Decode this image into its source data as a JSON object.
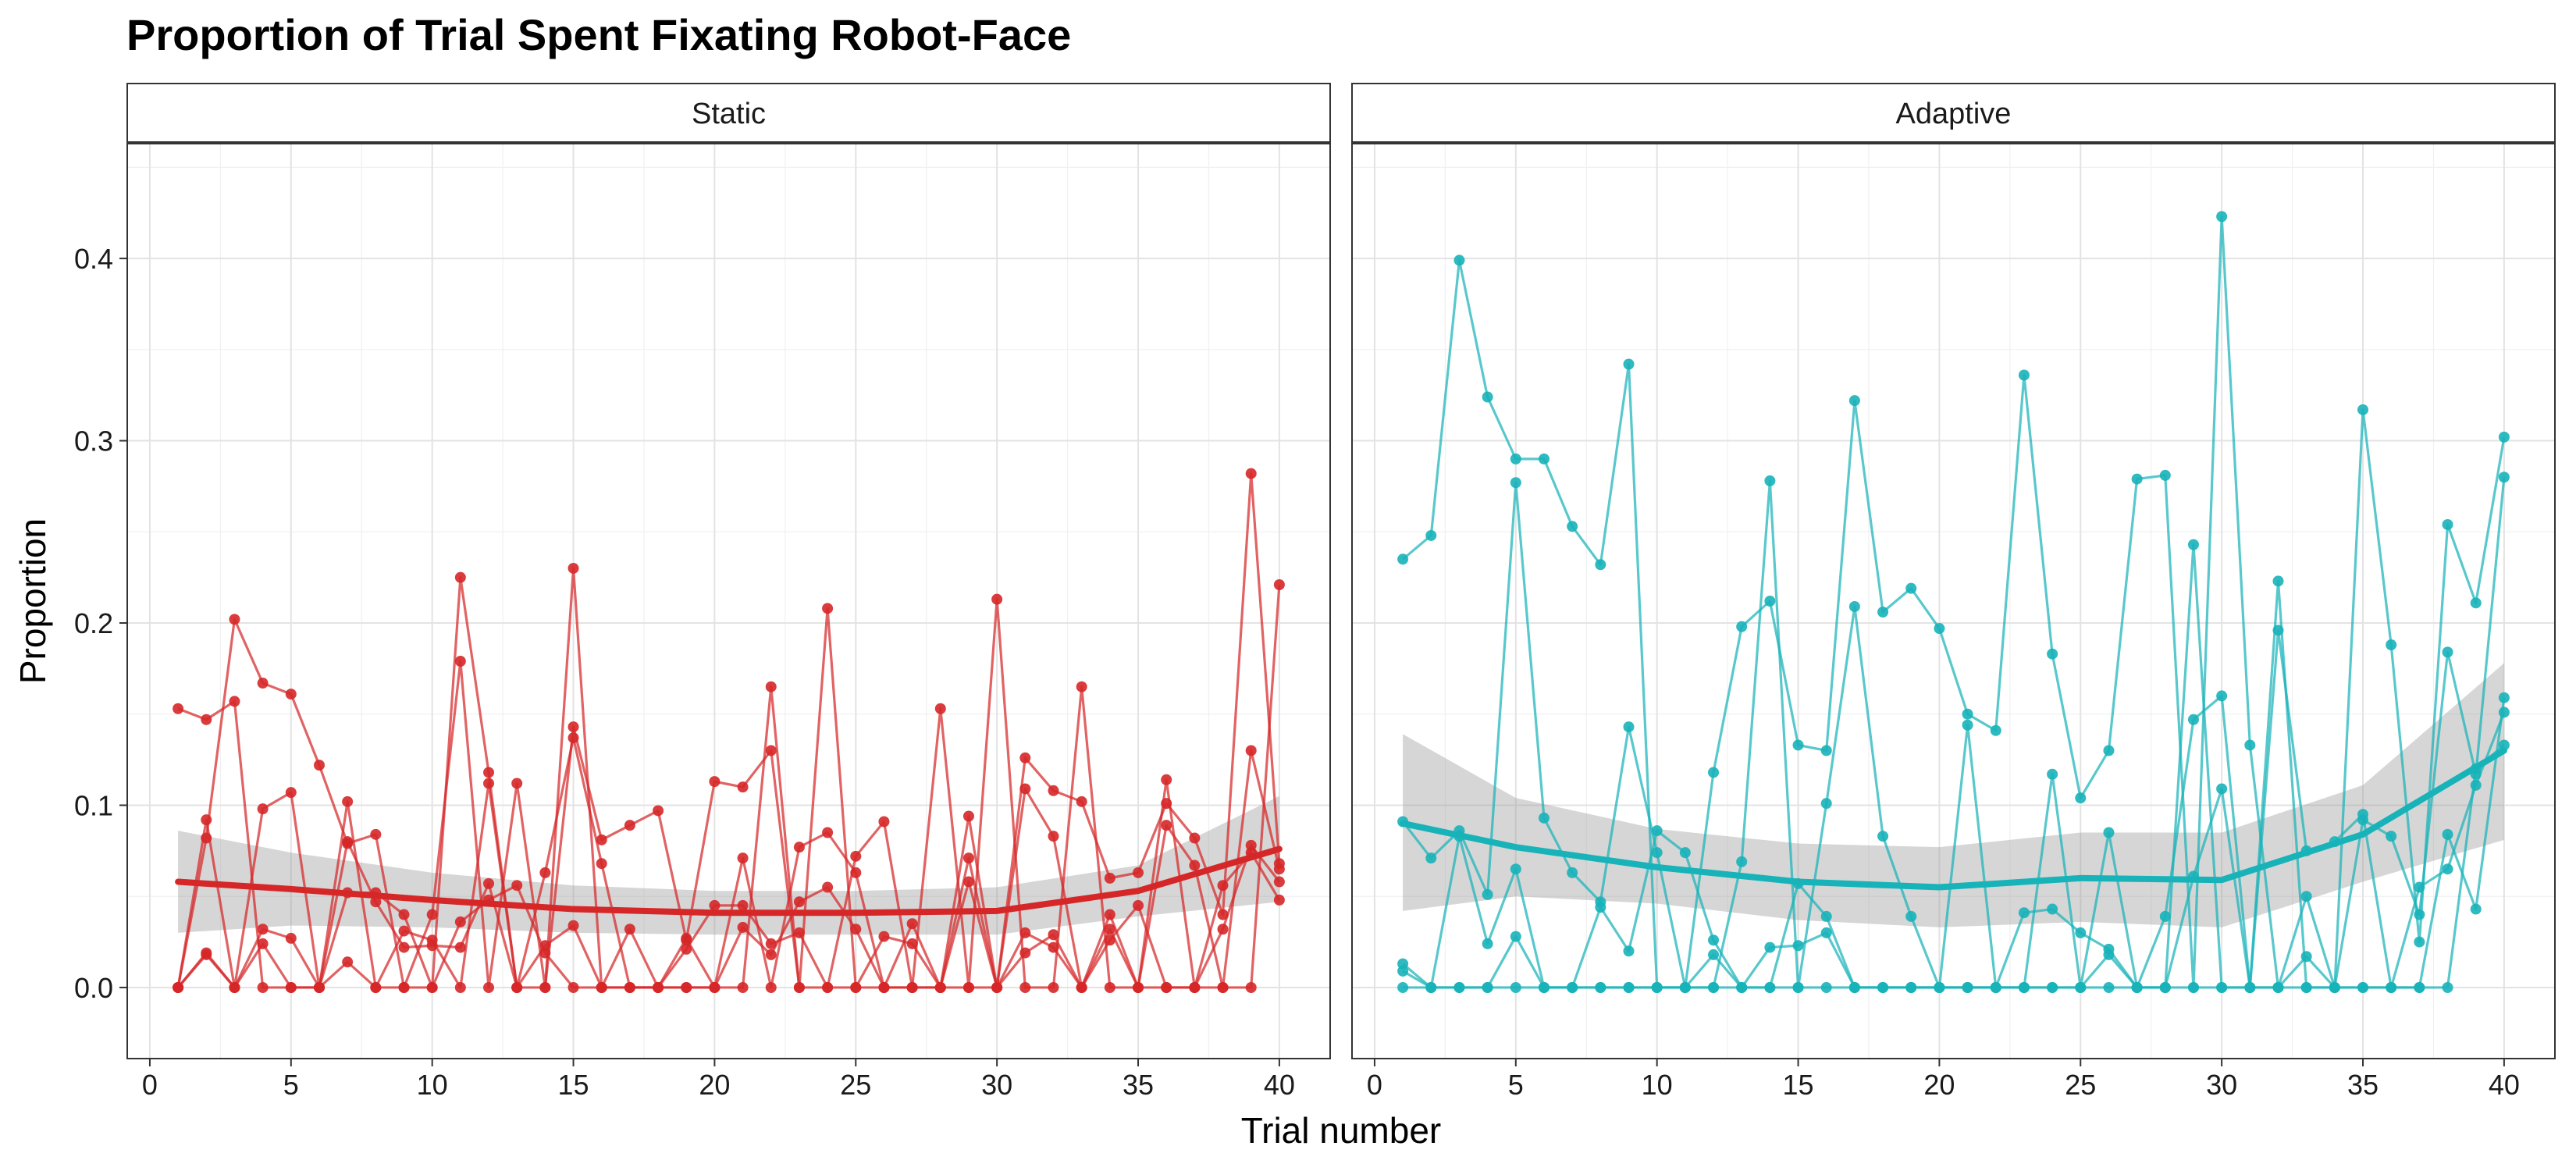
{
  "title": "Proportion of Trial Spent Fixating Robot-Face",
  "xlabel": "Trial number",
  "ylabel": "Proportion",
  "chart_data": {
    "type": "line",
    "title": "Proportion of Trial Spent Fixating Robot-Face",
    "xlabel": "Trial number",
    "ylabel": "Proportion",
    "xlim": [
      -0.8,
      41.8
    ],
    "ylim": [
      -0.039,
      0.463
    ],
    "x_ticks": [
      0,
      5,
      10,
      15,
      20,
      25,
      30,
      35,
      40
    ],
    "y_ticks": [
      0.0,
      0.1,
      0.2,
      0.3,
      0.4
    ],
    "x_tick_labels": [
      "0",
      "5",
      "10",
      "15",
      "20",
      "25",
      "30",
      "35",
      "40"
    ],
    "y_tick_labels": [
      "0.0",
      "0.1",
      "0.2",
      "0.3",
      "0.4"
    ],
    "grid": true,
    "smooth_band": "95% CI (gray)",
    "panels": [
      {
        "name": "Static",
        "color": "#d62728",
        "series": [
          {
            "x": [
              1,
              2,
              3,
              4,
              5,
              6,
              7,
              8,
              9,
              10,
              11,
              12,
              13,
              14,
              15,
              16,
              17,
              18,
              19,
              20,
              21,
              22,
              23,
              24,
              25,
              26,
              27,
              28,
              29,
              30,
              31,
              32,
              33,
              34,
              35,
              36,
              37,
              38,
              39,
              40
            ],
            "y": [
              0.153,
              0.147,
              0.157,
              0.0,
              0.0,
              0.0,
              0.014,
              0.0,
              0.0,
              0.04,
              0.179,
              0.0,
              0.112,
              0.0,
              0.23,
              0.0,
              0.0,
              0.0,
              0.0,
              0.0,
              0.0,
              0.165,
              0.0,
              0.208,
              0.0,
              0.0,
              0.0,
              0.153,
              0.0,
              0.213,
              0.0,
              0.0,
              0.165,
              0.0,
              0.0,
              0.114,
              0.0,
              0.0,
              0.0,
              0.221
            ]
          },
          {
            "x": [
              1,
              2,
              3,
              4,
              5,
              6,
              7,
              8,
              9,
              10,
              11,
              12,
              13,
              14,
              15,
              16,
              17,
              18,
              19,
              20,
              21,
              22,
              23,
              24,
              25,
              26,
              27,
              28,
              29,
              30,
              31,
              32,
              33,
              34,
              35,
              36,
              37,
              38,
              39,
              40
            ],
            "y": [
              0.0,
              0.082,
              0.202,
              0.167,
              0.161,
              0.122,
              0.079,
              0.084,
              0.0,
              0.0,
              0.225,
              0.118,
              0.0,
              0.0,
              0.143,
              0.081,
              0.089,
              0.097,
              0.026,
              0.113,
              0.11,
              0.13,
              0.0,
              0.0,
              0.072,
              0.091,
              0.0,
              0.0,
              0.094,
              0.0,
              0.126,
              0.108,
              0.102,
              0.06,
              0.063,
              0.101,
              0.082,
              0.04,
              0.282,
              0.068
            ]
          },
          {
            "x": [
              1,
              2,
              3,
              4,
              5,
              6,
              7,
              8,
              9,
              10,
              11,
              12,
              13,
              14,
              15,
              16,
              17,
              18,
              19,
              20,
              21,
              22,
              23,
              24,
              25,
              26,
              27,
              28,
              29,
              30,
              31,
              32,
              33,
              34,
              35,
              36,
              37,
              38,
              39,
              40
            ],
            "y": [
              0.0,
              0.092,
              0.0,
              0.098,
              0.107,
              0.0,
              0.102,
              0.0,
              0.031,
              0.026,
              0.0,
              0.112,
              0.0,
              0.063,
              0.137,
              0.068,
              0.0,
              0.0,
              0.0,
              0.0,
              0.071,
              0.0,
              0.077,
              0.085,
              0.063,
              0.0,
              0.0,
              0.0,
              0.071,
              0.0,
              0.109,
              0.083,
              0.0,
              0.032,
              0.0,
              0.089,
              0.067,
              0.0,
              0.13,
              0.065
            ]
          },
          {
            "x": [
              1,
              2,
              3,
              4,
              5,
              6,
              7,
              8,
              9,
              10,
              11,
              12,
              13,
              14,
              15,
              16,
              17,
              18,
              19,
              20,
              21,
              22,
              23,
              24,
              25,
              26,
              27,
              28,
              29,
              30,
              31,
              32,
              33,
              34,
              35,
              36,
              37,
              38,
              39,
              40
            ],
            "y": [
              0.0,
              0.018,
              0.0,
              0.032,
              0.027,
              0.0,
              0.052,
              0.052,
              0.04,
              0.0,
              0.036,
              0.048,
              0.056,
              0.019,
              0.0,
              0.0,
              0.032,
              0.0,
              0.021,
              0.045,
              0.045,
              0.024,
              0.03,
              0.0,
              0.0,
              0.028,
              0.024,
              0.0,
              0.0,
              0.0,
              0.03,
              0.022,
              0.0,
              0.026,
              0.045,
              0.0,
              0.0,
              0.032,
              0.078,
              0.058
            ]
          },
          {
            "x": [
              1,
              2,
              3,
              4,
              5,
              6,
              7,
              8,
              9,
              10,
              11,
              12,
              13,
              14,
              15,
              16,
              17,
              18,
              19,
              20,
              21,
              22,
              23,
              24,
              25,
              26,
              27,
              28,
              29,
              30,
              31,
              32,
              33,
              34,
              35,
              36,
              37,
              38,
              39,
              40
            ],
            "y": [
              0.0,
              0.019,
              0.0,
              0.024,
              0.0,
              0.0,
              0.08,
              0.047,
              0.022,
              0.023,
              0.022,
              0.057,
              0.0,
              0.023,
              0.034,
              0.0,
              0.0,
              0.0,
              0.027,
              0.0,
              0.033,
              0.018,
              0.047,
              0.055,
              0.032,
              0.0,
              0.035,
              0.0,
              0.058,
              0.0,
              0.019,
              0.029,
              0.0,
              0.04,
              0.0,
              0.0,
              0.0,
              0.056,
              0.074,
              0.048
            ]
          }
        ],
        "smooth": {
          "x": [
            1,
            5,
            10,
            15,
            20,
            25,
            30,
            35,
            40
          ],
          "y": [
            0.058,
            0.054,
            0.048,
            0.043,
            0.041,
            0.041,
            0.042,
            0.053,
            0.076
          ],
          "lower": [
            0.03,
            0.034,
            0.033,
            0.03,
            0.029,
            0.029,
            0.029,
            0.039,
            0.047
          ],
          "upper": [
            0.086,
            0.074,
            0.063,
            0.056,
            0.053,
            0.053,
            0.055,
            0.067,
            0.105
          ]
        }
      },
      {
        "name": "Adaptive",
        "color": "#17b3b9",
        "series": [
          {
            "x": [
              1,
              2,
              3,
              4,
              5,
              6,
              7,
              8,
              9,
              10,
              11,
              12,
              13,
              14,
              15,
              16,
              17,
              18,
              19,
              20,
              21,
              22,
              23,
              24,
              25,
              26,
              27,
              28,
              29,
              30,
              31,
              32,
              33,
              34,
              35,
              36,
              37,
              38,
              39,
              40
            ],
            "y": [
              0.235,
              0.248,
              0.399,
              0.324,
              0.29,
              0.29,
              0.253,
              0.232,
              0.342,
              0.0,
              0.0,
              0.118,
              0.198,
              0.212,
              0.133,
              0.13,
              0.322,
              0.206,
              0.219,
              0.197,
              0.15,
              0.141,
              0.336,
              0.183,
              0.104,
              0.13,
              0.279,
              0.281,
              0.0,
              0.423,
              0.133,
              0.0,
              0.0,
              0.0,
              0.317,
              0.188,
              0.025,
              0.254,
              0.211,
              0.302
            ]
          },
          {
            "x": [
              1,
              2,
              3,
              4,
              5,
              6,
              7,
              8,
              9,
              10,
              11,
              12,
              13,
              14,
              15,
              16,
              17,
              18,
              19,
              20,
              21,
              22,
              23,
              24,
              25,
              26,
              27,
              28,
              29,
              30,
              31,
              32,
              33,
              34,
              35,
              36,
              37,
              38,
              39,
              40
            ],
            "y": [
              0.091,
              0.071,
              0.086,
              0.051,
              0.277,
              0.093,
              0.063,
              0.047,
              0.143,
              0.074,
              0.0,
              0.0,
              0.069,
              0.278,
              0.0,
              0.101,
              0.209,
              0.083,
              0.039,
              0.0,
              0.144,
              0.0,
              0.0,
              0.117,
              0.0,
              0.085,
              0.0,
              0.0,
              0.243,
              0.0,
              0.0,
              0.223,
              0.0,
              0.0,
              0.092,
              0.083,
              0.04,
              0.184,
              0.117,
              0.28
            ]
          },
          {
            "x": [
              1,
              2,
              3,
              4,
              5,
              6,
              7,
              8,
              9,
              10,
              11,
              12,
              13,
              14,
              15,
              16,
              17,
              18,
              19,
              20,
              21,
              22,
              23,
              24,
              25,
              26,
              27,
              28,
              29,
              30,
              31,
              32,
              33,
              34,
              35,
              36,
              37,
              38,
              39,
              40
            ],
            "y": [
              0.013,
              0.0,
              0.083,
              0.024,
              0.065,
              0.0,
              0.0,
              0.044,
              0.02,
              0.086,
              0.074,
              0.026,
              0.0,
              0.022,
              0.023,
              0.03,
              0.0,
              0.0,
              0.0,
              0.0,
              0.0,
              0.0,
              0.041,
              0.043,
              0.03,
              0.021,
              0.0,
              0.039,
              0.147,
              0.16,
              0.0,
              0.196,
              0.075,
              0.08,
              0.095,
              0.0,
              0.0,
              0.084,
              0.043,
              0.159
            ]
          },
          {
            "x": [
              1,
              2,
              3,
              4,
              5,
              6,
              7,
              8,
              9,
              10,
              11,
              12,
              13,
              14,
              15,
              16,
              17,
              18,
              19,
              20,
              21,
              22,
              23,
              24,
              25,
              26,
              27,
              28,
              29,
              30,
              31,
              32,
              33,
              34,
              35,
              36,
              37,
              38,
              39,
              40
            ],
            "y": [
              0.009,
              0.0,
              0.0,
              0.0,
              0.028,
              0.0,
              0.0,
              0.0,
              0.0,
              0.0,
              0.0,
              0.018,
              0.0,
              0.0,
              0.057,
              0.039,
              0.0,
              0.0,
              0.0,
              0.0,
              0.0,
              0.0,
              0.0,
              0.0,
              0.0,
              0.018,
              0.0,
              0.0,
              0.061,
              0.109,
              0.0,
              0.0,
              0.017,
              0.0,
              0.0,
              0.0,
              0.055,
              0.065,
              0.111,
              0.151
            ]
          },
          {
            "x": [
              1,
              2,
              3,
              4,
              5,
              6,
              7,
              8,
              9,
              10,
              11,
              12,
              13,
              14,
              15,
              16,
              17,
              18,
              19,
              20,
              21,
              22,
              23,
              24,
              25,
              26,
              27,
              28,
              29,
              30,
              31,
              32,
              33,
              34,
              35,
              36,
              37,
              38,
              39,
              40
            ],
            "y": [
              0.0,
              0.0,
              0.0,
              0.0,
              0.0,
              0.0,
              0.0,
              0.0,
              0.0,
              0.0,
              0.0,
              0.0,
              0.0,
              0.0,
              0.0,
              0.0,
              0.0,
              0.0,
              0.0,
              0.0,
              0.0,
              0.0,
              0.0,
              0.0,
              0.0,
              0.0,
              0.0,
              0.0,
              0.0,
              0.0,
              0.0,
              0.0,
              0.05,
              0.0,
              0.0,
              0.0,
              0.0,
              0.0,
              0.12,
              0.133
            ]
          }
        ],
        "smooth": {
          "x": [
            1,
            5,
            10,
            15,
            20,
            25,
            30,
            35,
            40
          ],
          "y": [
            0.09,
            0.077,
            0.066,
            0.058,
            0.055,
            0.06,
            0.059,
            0.084,
            0.13
          ],
          "lower": [
            0.042,
            0.05,
            0.046,
            0.037,
            0.033,
            0.036,
            0.033,
            0.058,
            0.081
          ],
          "upper": [
            0.139,
            0.104,
            0.087,
            0.079,
            0.077,
            0.085,
            0.085,
            0.111,
            0.178
          ]
        }
      }
    ]
  }
}
